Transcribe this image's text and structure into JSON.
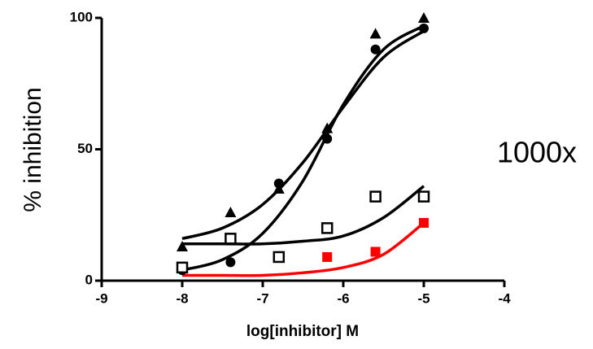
{
  "chart_data": {
    "type": "scatter",
    "xlabel": "log[inhibitor] M",
    "ylabel": "% inhibition",
    "annotation": "1000x",
    "xlim": [
      -9,
      -4
    ],
    "xticks": [
      -9,
      -8,
      -7,
      -6,
      -5,
      -4
    ],
    "ylim": [
      0,
      100
    ],
    "yticks": [
      0,
      50,
      100
    ],
    "series": [
      {
        "marker": "triangle",
        "color": "#000000",
        "x": [
          -8,
          -7.4,
          -6.8,
          -6.2,
          -5.6,
          -5
        ],
        "values": [
          13,
          26,
          35,
          58,
          94,
          100
        ]
      },
      {
        "marker": "circle",
        "color": "#000000",
        "x": [
          -8,
          -7.4,
          -6.8,
          -6.2,
          -5.6,
          -5
        ],
        "values": [
          4,
          7,
          37,
          54,
          88,
          96
        ]
      },
      {
        "marker": "square-open",
        "color": "#000000",
        "x": [
          -8,
          -7.4,
          -6.8,
          -6.2,
          -5.6,
          -5
        ],
        "values": [
          5,
          16,
          9,
          20,
          32,
          32
        ]
      },
      {
        "marker": "square",
        "color": "#ff0000",
        "x": [
          -6.2,
          -5.6,
          -5
        ],
        "values": [
          9,
          11,
          22
        ]
      }
    ],
    "fit_x": [
      -8,
      -7.5,
      -7,
      -6.5,
      -6,
      -5.5,
      -5
    ],
    "fits": [
      {
        "color": "#000000",
        "values": [
          16,
          20,
          29,
          45,
          66,
          85,
          95
        ]
      },
      {
        "color": "#000000",
        "values": [
          4,
          8,
          18,
          38,
          67,
          88,
          97
        ]
      },
      {
        "color": "#000000",
        "values": [
          14,
          14,
          14,
          15,
          17,
          24,
          36
        ]
      },
      {
        "color": "#ff0000",
        "values": [
          2,
          2,
          2,
          3,
          5,
          10,
          22
        ]
      }
    ]
  }
}
